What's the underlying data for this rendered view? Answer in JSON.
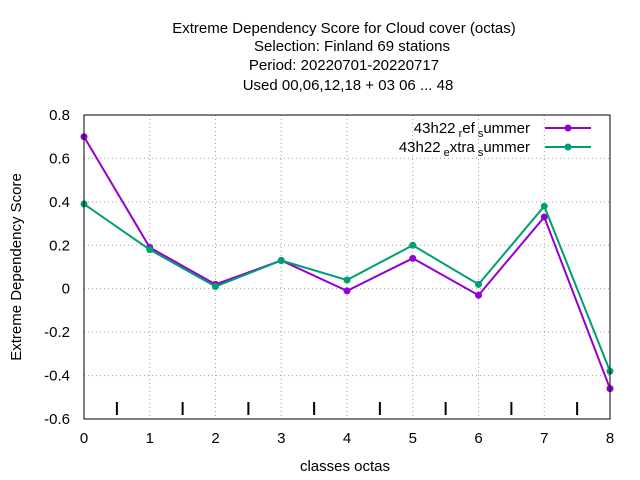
{
  "chart_data": {
    "type": "line",
    "title": [
      "Extreme Dependency Score  for Cloud cover (octas)",
      "Selection: Finland     69 stations",
      "Period: 20220701-20220717",
      "Used  00,06,12,18  + 03 06 ... 48"
    ],
    "xlabel": "classes octas",
    "ylabel": "Extreme Dependency Score",
    "xlim": [
      0,
      8
    ],
    "ylim": [
      -0.6,
      0.8
    ],
    "xticks": [
      "0",
      "1",
      "2",
      "3",
      "4",
      "5",
      "6",
      "7",
      "8"
    ],
    "yticks": [
      "-0.6",
      "-0.4",
      "-0.2",
      "0",
      "0.2",
      "0.4",
      "0.6",
      "0.8"
    ],
    "grid": true,
    "legend_position": "top-right",
    "x": [
      0,
      1,
      2,
      3,
      4,
      5,
      6,
      7,
      8
    ],
    "series": [
      {
        "legend": {
          "base": "43h22",
          "sub1": "r",
          "mid": "ef",
          "sub2": "s",
          "end": "ummer"
        },
        "color": "#9400d3",
        "values": [
          0.7,
          0.19,
          0.02,
          0.13,
          -0.01,
          0.14,
          -0.03,
          0.33,
          -0.46
        ]
      },
      {
        "legend": {
          "base": "43h22",
          "sub1": "e",
          "mid": "xtra",
          "sub2": "s",
          "end": "ummer"
        },
        "color": "#009e73",
        "values": [
          0.39,
          0.18,
          0.01,
          0.13,
          0.04,
          0.2,
          0.02,
          0.38,
          -0.38
        ]
      }
    ],
    "bottom_markers_x": [
      0.5,
      1.5,
      2.5,
      3.5,
      4.5,
      5.5,
      6.5,
      7.5
    ]
  }
}
